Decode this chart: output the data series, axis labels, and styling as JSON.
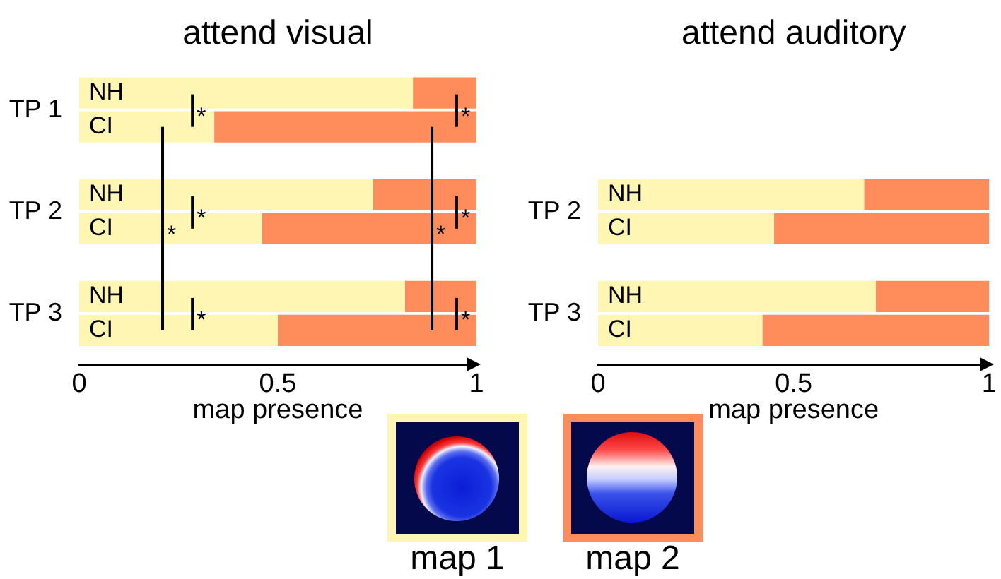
{
  "chart_data": [
    {
      "type": "bar",
      "orientation": "horizontal",
      "stacked": true,
      "title": "attend visual",
      "xlabel": "map presence",
      "categories": [
        "NH",
        "CI",
        "NH",
        "CI",
        "NH",
        "CI"
      ],
      "series": [
        {
          "name": "map 1",
          "color": "#fff6b3",
          "values": [
            0.84,
            0.34,
            0.74,
            0.46,
            0.82,
            0.5
          ]
        },
        {
          "name": "map 2",
          "color": "#ff8c5a",
          "values": [
            0.16,
            0.66,
            0.26,
            0.54,
            0.18,
            0.5
          ]
        }
      ],
      "xlim": [
        0,
        1
      ],
      "xticks": [
        0,
        0.5,
        1
      ],
      "legend": "bottom right",
      "annotations": [
        "TP 1",
        "TP 2",
        "TP 3",
        "*",
        "*",
        "*",
        "*",
        "*",
        "*",
        "*",
        "*"
      ]
    },
    {
      "type": "bar",
      "orientation": "horizontal",
      "stacked": true,
      "title": "attend auditory",
      "xlabel": "map presence",
      "categories": [
        "NH",
        "CI",
        "NH",
        "CI"
      ],
      "series": [
        {
          "color": "#fff6b3",
          "values": [
            0.68,
            0.45,
            0.71,
            0.42
          ]
        },
        {
          "color": "#ff8c5a",
          "values": [
            0.32,
            0.55,
            0.29,
            0.58
          ]
        }
      ],
      "xlim": [
        0,
        1
      ],
      "xticks": [
        0,
        0.5,
        1
      ],
      "annotations": [
        "TP 2",
        "TP 3"
      ]
    }
  ]
}
